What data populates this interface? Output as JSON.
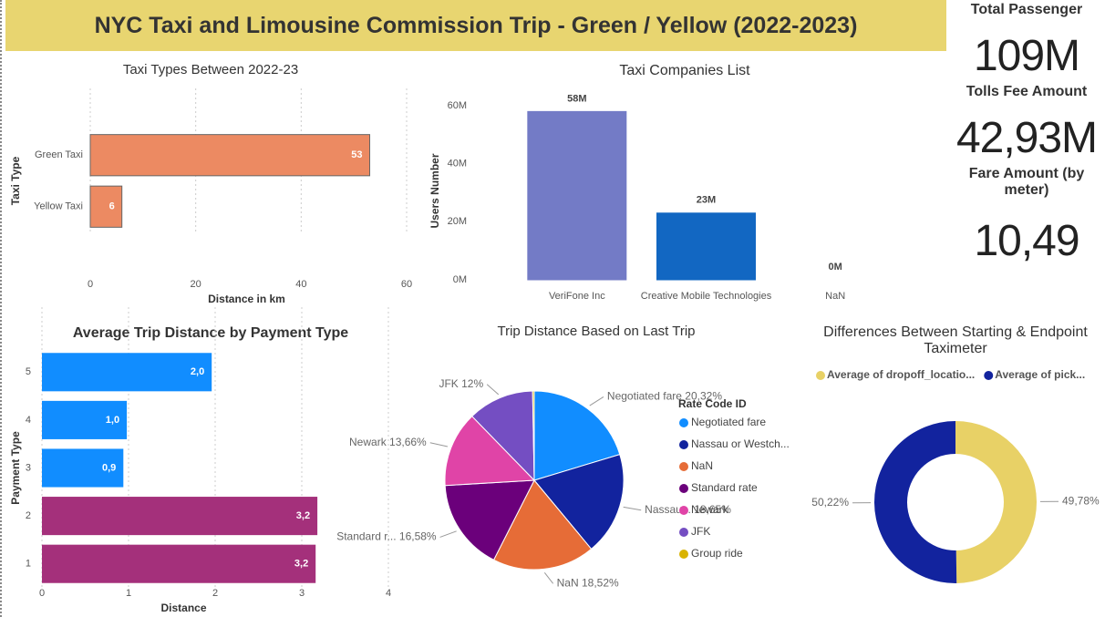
{
  "title": "NYC Taxi and Limousine Commission Trip - Green / Yellow (2022-2023)",
  "cards": [
    {
      "label": "Total Passenger",
      "value": "109M"
    },
    {
      "label": "Tolls Fee Amount",
      "value": "42,93M"
    },
    {
      "label": "Fare Amount (by meter)",
      "value": "10,49"
    }
  ],
  "chart_data": [
    {
      "type": "hbar",
      "title": "Taxi Types Between 2022-23",
      "categories": [
        "Green Taxi",
        "Yellow Taxi"
      ],
      "values": [
        53,
        6
      ],
      "color": "#ec8a62",
      "xlim": [
        0,
        60
      ],
      "xticks": [
        0,
        20,
        40,
        60
      ],
      "x_label": "Distance in km",
      "y_label": "Taxi Type",
      "grid": true
    },
    {
      "type": "bar",
      "title": "Taxi Companies List",
      "categories": [
        "VeriFone Inc",
        "Creative Mobile Technologies",
        "NaN"
      ],
      "values": [
        58000000,
        23000000,
        0
      ],
      "value_labels": [
        "58M",
        "23M",
        "0M"
      ],
      "colors": [
        "#737bc6",
        "#1267c2",
        "#e8735a"
      ],
      "ylim": [
        0,
        60000000
      ],
      "yticks": [
        {
          "value": 0,
          "label": "0M"
        },
        {
          "value": 20000000,
          "label": "20M"
        },
        {
          "value": 40000000,
          "label": "40M"
        },
        {
          "value": 60000000,
          "label": "60M"
        }
      ],
      "y_label": "Users Number",
      "grid": false
    },
    {
      "type": "hbar",
      "title": "Average Trip Distance by Payment Type",
      "categories": [
        "5",
        "4",
        "3",
        "2",
        "1"
      ],
      "values": [
        1.96,
        0.98,
        0.94,
        3.18,
        3.16
      ],
      "value_labels": [
        "2,0",
        "1,0",
        "0,9",
        "3,2",
        "3,2"
      ],
      "colors": [
        "#118dff",
        "#118dff",
        "#118dff",
        "#a4307b",
        "#a4307b"
      ],
      "xlim": [
        0,
        4.2
      ],
      "xticks": [
        0,
        1,
        2,
        3,
        4
      ],
      "x_label": "Distance",
      "y_label": "Payment Type",
      "grid": true
    },
    {
      "type": "pie",
      "title": "Trip Distance Based on Last Trip",
      "legend_title": "Rate Code ID",
      "categories": [
        "Negotiated fare",
        "Nassau or Westch...",
        "NaN",
        "Standard rate",
        "Newark",
        "JFK",
        "Group ride"
      ],
      "values": [
        20.32,
        18.65,
        18.52,
        16.58,
        13.66,
        11.97,
        0.3
      ],
      "value_labels": [
        "Negotiated fare 20,32%",
        "Nassau... 18,65%",
        "NaN 18,52%",
        "Standard r... 16,58%",
        "Newark 13,66%",
        "JFK 12%",
        null
      ],
      "colors": [
        "#118dff",
        "#12239e",
        "#e66c37",
        "#6b007b",
        "#e044a7",
        "#744ec2",
        "#d9b300"
      ]
    },
    {
      "type": "donut",
      "title": "Differences Between Starting & Endpoint Taximeter",
      "categories": [
        "Average of dropoff_locatio...",
        "Average of pick..."
      ],
      "values": [
        49.78,
        50.22
      ],
      "value_labels": [
        "49,78%",
        "50,22%"
      ],
      "colors": [
        "#e8d166",
        "#12239e"
      ]
    }
  ]
}
